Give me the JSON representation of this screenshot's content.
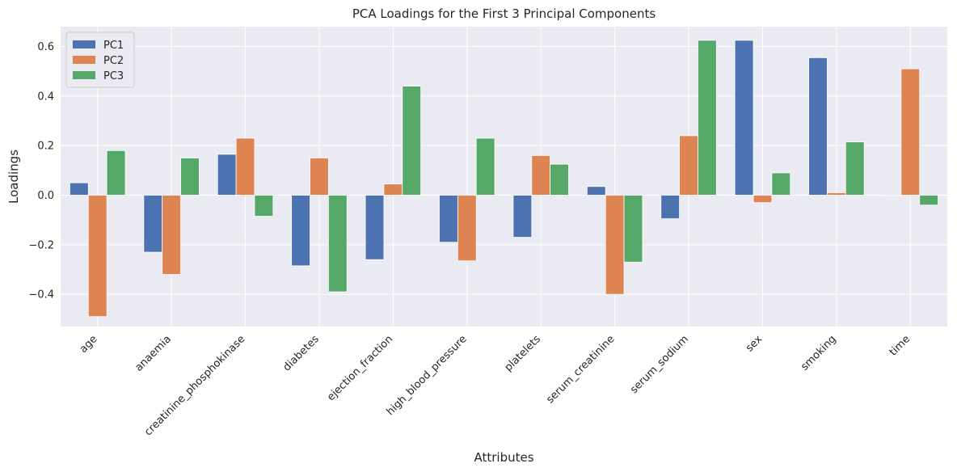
{
  "chart_data": {
    "type": "bar",
    "title": "PCA Loadings for the First 3 Principal Components",
    "xlabel": "Attributes",
    "ylabel": "Loadings",
    "ylim": [
      -0.53,
      0.68
    ],
    "yticks": [
      -0.4,
      -0.2,
      0.0,
      0.2,
      0.4,
      0.6
    ],
    "ytick_labels": [
      "−0.4",
      "−0.2",
      "0.0",
      "0.2",
      "0.4",
      "0.6"
    ],
    "grid": true,
    "legend_position": "top-left",
    "categories": [
      "age",
      "anaemia",
      "creatinine_phosphokinase",
      "diabetes",
      "ejection_fraction",
      "high_blood_pressure",
      "platelets",
      "serum_creatinine",
      "serum_sodium",
      "sex",
      "smoking",
      "time"
    ],
    "series": [
      {
        "name": "PC1",
        "color": "#4c72b0",
        "values": [
          0.05,
          -0.23,
          0.165,
          -0.285,
          -0.26,
          -0.19,
          -0.17,
          0.035,
          -0.095,
          0.625,
          0.555,
          -0.003
        ]
      },
      {
        "name": "PC2",
        "color": "#dd8452",
        "values": [
          -0.49,
          -0.32,
          0.23,
          0.15,
          0.045,
          -0.265,
          0.16,
          -0.4,
          0.24,
          -0.03,
          0.01,
          0.51
        ]
      },
      {
        "name": "PC3",
        "color": "#55a868",
        "values": [
          0.18,
          0.15,
          -0.085,
          -0.39,
          0.44,
          0.23,
          0.125,
          -0.27,
          0.625,
          0.09,
          0.215,
          -0.04
        ]
      }
    ]
  }
}
